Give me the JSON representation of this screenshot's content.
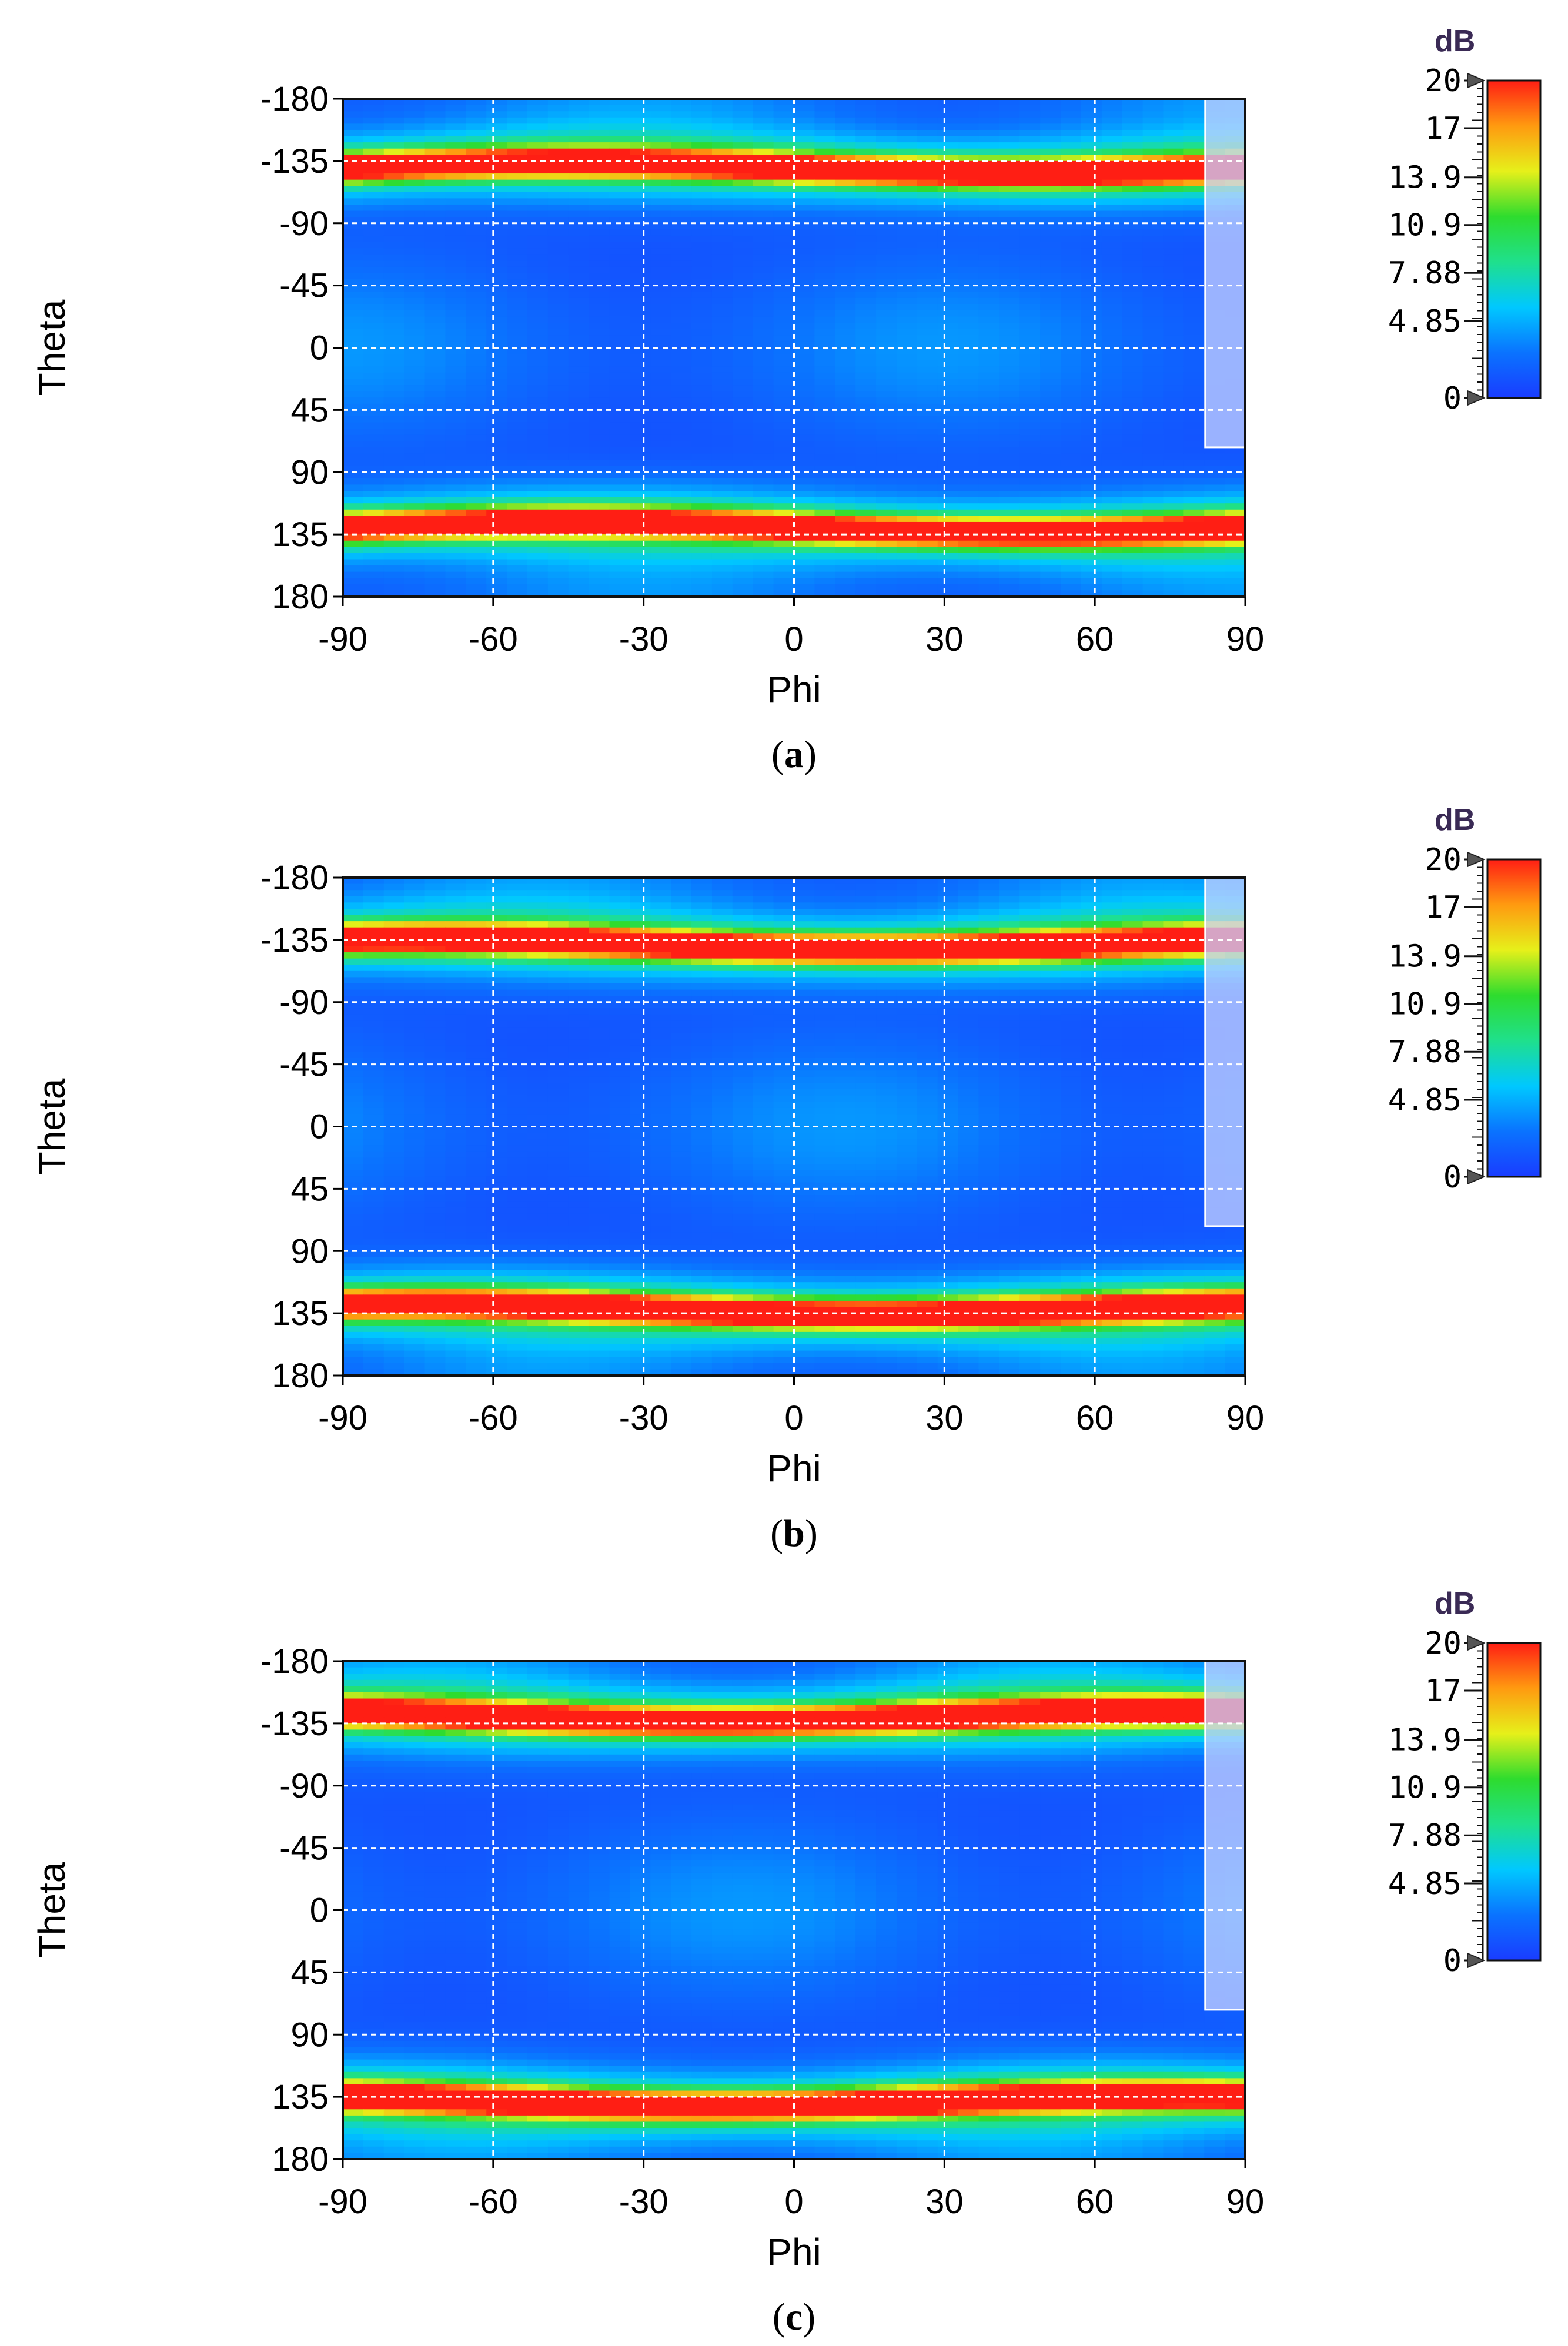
{
  "chart_data": [
    {
      "type": "heatmap",
      "caption": {
        "open": "(",
        "letter": "a",
        "close": ")"
      },
      "xlabel": "Phi",
      "ylabel": "Theta",
      "xlim": [
        -90,
        90
      ],
      "ylim": [
        -180,
        180
      ],
      "x_ticks": [
        "-90",
        "-60",
        "-30",
        "0",
        "30",
        "60",
        "90"
      ],
      "y_ticks": [
        "-180",
        "-135",
        "-90",
        "-45",
        "0",
        "45",
        "90",
        "135",
        "180"
      ],
      "colorbar": {
        "unit": "dB",
        "range": [
          0,
          20
        ],
        "ticks": [
          "20",
          "17",
          "13.9",
          "10.9",
          "7.88",
          "4.85",
          "0"
        ]
      },
      "grid": true,
      "peak_bands": [
        {
          "theta": -130,
          "peak_db": 20
        },
        {
          "theta": 130,
          "peak_db": 20
        }
      ]
    },
    {
      "type": "heatmap",
      "caption": {
        "open": "(",
        "letter": "b",
        "close": ")"
      },
      "xlabel": "Phi",
      "ylabel": "Theta",
      "xlim": [
        -90,
        90
      ],
      "ylim": [
        -180,
        180
      ],
      "x_ticks": [
        "-90",
        "-60",
        "-30",
        "0",
        "30",
        "60",
        "90"
      ],
      "y_ticks": [
        "-180",
        "-135",
        "-90",
        "-45",
        "0",
        "45",
        "90",
        "135",
        "180"
      ],
      "colorbar": {
        "unit": "dB",
        "range": [
          0,
          20
        ],
        "ticks": [
          "20",
          "17",
          "13.9",
          "10.9",
          "7.88",
          "4.85",
          "0"
        ]
      },
      "grid": true,
      "peak_bands": [
        {
          "theta": -132,
          "peak_db": 20
        },
        {
          "theta": 132,
          "peak_db": 20
        }
      ]
    },
    {
      "type": "heatmap",
      "caption": {
        "open": "(",
        "letter": "c",
        "close": ")"
      },
      "xlabel": "Phi",
      "ylabel": "Theta",
      "xlim": [
        -90,
        90
      ],
      "ylim": [
        -180,
        180
      ],
      "x_ticks": [
        "-90",
        "-60",
        "-30",
        "0",
        "30",
        "60",
        "90"
      ],
      "y_ticks": [
        "-180",
        "-135",
        "-90",
        "-45",
        "0",
        "45",
        "90",
        "135",
        "180"
      ],
      "colorbar": {
        "unit": "dB",
        "range": [
          0,
          20
        ],
        "ticks": [
          "20",
          "17",
          "13.9",
          "10.9",
          "7.88",
          "4.85",
          "0"
        ]
      },
      "grid": true,
      "peak_bands": [
        {
          "theta": -140,
          "peak_db": 20
        },
        {
          "theta": 138,
          "peak_db": 20
        }
      ]
    }
  ],
  "colors": {
    "jet_stops": [
      "#1a3cff",
      "#0a73ff",
      "#00c8ff",
      "#1fe08c",
      "#2edc2e",
      "#e6f01a",
      "#ff9a10",
      "#ff1e14"
    ],
    "grid": "#ffffff",
    "frame": "#111111",
    "arrow": "#555555",
    "overlay": "#c8d2ff"
  }
}
